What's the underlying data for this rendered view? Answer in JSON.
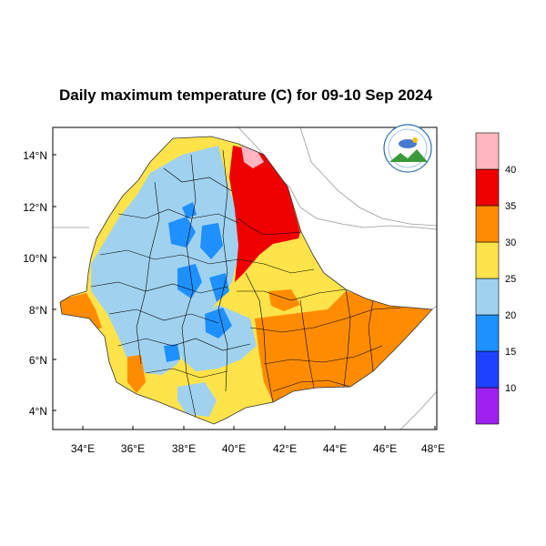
{
  "map": {
    "title": "Daily maximum temperature (C) for 09-10 Sep 2024",
    "lat_labels": [
      "14°N",
      "12°N",
      "10°N",
      "8°N",
      "6°N",
      "4°N"
    ],
    "lon_labels": [
      "34°E",
      "36°E",
      "38°E",
      "40°E",
      "42°E",
      "44°E",
      "46°E",
      "48°E"
    ],
    "colorbar": {
      "colors": [
        "#a020f0",
        "#1e40ff",
        "#1e90ff",
        "#a0d2f0",
        "#ffe34a",
        "#ff8c00",
        "#ee0000",
        "#ffb6c1"
      ],
      "tick_labels": [
        "10",
        "15",
        "20",
        "25",
        "30",
        "35",
        "40"
      ]
    },
    "logo_icon": "meteorology-agency-logo"
  }
}
